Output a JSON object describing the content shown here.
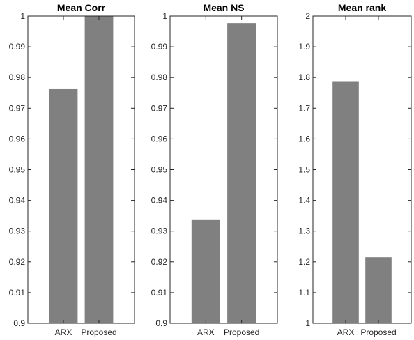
{
  "chart_data": [
    {
      "type": "bar",
      "title": "Mean Corr",
      "categories": [
        "ARX",
        "Proposed"
      ],
      "values": [
        0.9762,
        1.0
      ],
      "ylim": [
        0.9,
        1.0
      ],
      "yticks": [
        "0.9",
        "0.91",
        "0.92",
        "0.93",
        "0.94",
        "0.95",
        "0.96",
        "0.97",
        "0.98",
        "0.99",
        "1"
      ],
      "xlabel": "",
      "ylabel": "",
      "bar_color": "#808080",
      "grid": false
    },
    {
      "type": "bar",
      "title": "Mean NS",
      "categories": [
        "ARX",
        "Proposed"
      ],
      "values": [
        0.9336,
        0.9977
      ],
      "ylim": [
        0.9,
        1.0
      ],
      "yticks": [
        "0.9",
        "0.91",
        "0.92",
        "0.93",
        "0.94",
        "0.95",
        "0.96",
        "0.97",
        "0.98",
        "0.99",
        "1"
      ],
      "xlabel": "",
      "ylabel": "",
      "bar_color": "#808080",
      "grid": false
    },
    {
      "type": "bar",
      "title": "Mean rank",
      "categories": [
        "ARX",
        "Proposed"
      ],
      "values": [
        1.788,
        1.215
      ],
      "ylim": [
        1.0,
        2.0
      ],
      "yticks": [
        "1",
        "1.1",
        "1.2",
        "1.3",
        "1.4",
        "1.5",
        "1.6",
        "1.7",
        "1.8",
        "1.9",
        "2"
      ],
      "xlabel": "",
      "ylabel": "",
      "bar_color": "#808080",
      "grid": false
    }
  ]
}
